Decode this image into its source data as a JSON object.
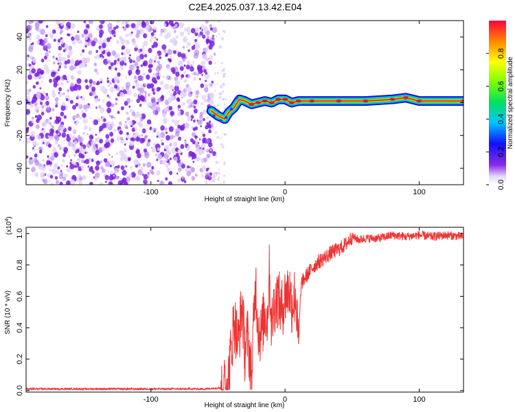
{
  "title": "C2E4.2025.037.13.42.E04",
  "chart_data": [
    {
      "type": "heatmap",
      "xlabel": "Height of straight line (km)",
      "ylabel": "Frequency (Hz)",
      "xlim": [
        -193,
        133
      ],
      "ylim": [
        -50,
        50
      ],
      "x_ticks": [
        -100,
        0,
        100
      ],
      "x_tick_labels": [
        "-100",
        "0",
        "100"
      ],
      "y_ticks": [
        -40,
        -20,
        0,
        20,
        40
      ],
      "y_tick_labels": [
        "-40",
        "-20",
        "0",
        "20",
        "40"
      ],
      "noise_region_x": [
        -193,
        -52
      ],
      "signal_track": [
        {
          "x": -55,
          "y": -5
        },
        {
          "x": -50,
          "y": -8
        },
        {
          "x": -45,
          "y": -10
        },
        {
          "x": -42,
          "y": -6
        },
        {
          "x": -38,
          "y": -3
        },
        {
          "x": -34,
          "y": 2
        },
        {
          "x": -30,
          "y": 1
        },
        {
          "x": -25,
          "y": -1
        },
        {
          "x": -20,
          "y": 0
        },
        {
          "x": -15,
          "y": 1
        },
        {
          "x": -10,
          "y": 0
        },
        {
          "x": -5,
          "y": 2
        },
        {
          "x": 0,
          "y": 2
        },
        {
          "x": 5,
          "y": 0
        },
        {
          "x": 10,
          "y": 1
        },
        {
          "x": 20,
          "y": 1
        },
        {
          "x": 40,
          "y": 1
        },
        {
          "x": 60,
          "y": 1
        },
        {
          "x": 80,
          "y": 2
        },
        {
          "x": 90,
          "y": 3
        },
        {
          "x": 100,
          "y": 1
        },
        {
          "x": 133,
          "y": 1
        }
      ],
      "colorbar": {
        "label": "Normalized spectral amplitude",
        "range": [
          0,
          1
        ],
        "ticks": [
          0,
          0.2,
          0.4,
          0.6,
          0.8
        ],
        "tick_labels": [
          "0.0",
          "0.2",
          "0.4",
          "0.6",
          "0.8"
        ]
      }
    },
    {
      "type": "line",
      "xlabel": "Height of straight line (km)",
      "ylabel": "SNR (10 * v/v)",
      "y_multiplier_label": "(x10",
      "y_multiplier_exp": "4",
      "y_multiplier_close": ")",
      "xlim": [
        -193,
        133
      ],
      "ylim": [
        -0.01,
        1.04
      ],
      "x_ticks": [
        -100,
        0,
        100
      ],
      "x_tick_labels": [
        "-100",
        "0",
        "100"
      ],
      "y_ticks": [
        0.0,
        0.2,
        0.4,
        0.6,
        0.8,
        1.0
      ],
      "y_tick_labels": [
        "0.0",
        "0.2",
        "0.4",
        "0.6",
        "0.8",
        "1.0"
      ],
      "color": "#ee3333",
      "series": [
        {
          "x": [
            -193,
            -160,
            -120,
            -90,
            -60,
            -45,
            -42,
            -38,
            -35,
            -32,
            -30,
            -28,
            -25,
            -22,
            -20,
            -18,
            -15,
            -13,
            -12,
            -10,
            -8,
            -5,
            -3,
            0,
            3,
            5,
            8,
            10,
            12,
            15,
            20,
            25,
            30,
            35,
            40,
            45,
            50,
            55,
            60,
            70,
            80,
            90,
            100,
            110,
            120,
            133
          ],
          "y": [
            0.01,
            0.01,
            0.01,
            0.01,
            0.01,
            0.02,
            0.1,
            0.45,
            0.3,
            0.55,
            0.25,
            0.35,
            0.1,
            0.7,
            0.4,
            0.35,
            0.5,
            0.45,
            0.8,
            0.4,
            0.55,
            0.6,
            0.5,
            0.6,
            0.65,
            0.55,
            0.62,
            0.28,
            0.68,
            0.72,
            0.78,
            0.82,
            0.85,
            0.88,
            0.9,
            0.93,
            0.98,
            0.96,
            0.97,
            0.97,
            0.99,
            0.98,
            0.99,
            0.98,
            0.99,
            0.98
          ]
        }
      ]
    }
  ]
}
